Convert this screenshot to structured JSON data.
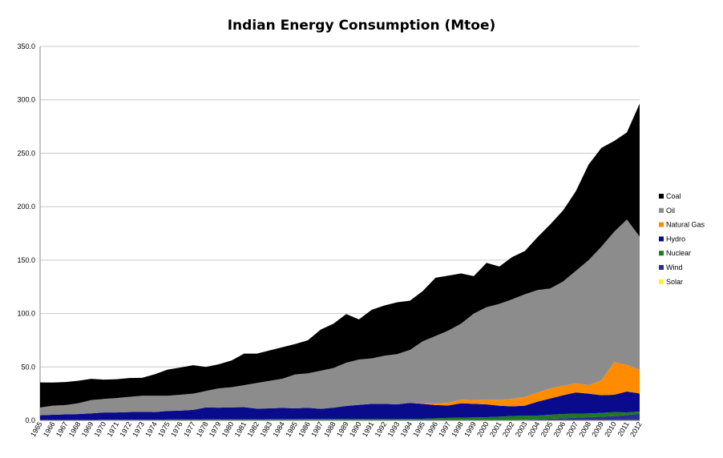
{
  "chart_data": {
    "type": "area",
    "stacked": true,
    "title": "Indian Energy Consumption (Mtoe)",
    "xlabel": "",
    "ylabel": "",
    "ylim": [
      0,
      350
    ],
    "yticks": [
      "350.0",
      "300.0",
      "250.0",
      "200.0",
      "150.0",
      "100.0",
      "50.0",
      "0.0"
    ],
    "grid": true,
    "legend_position": "right",
    "categories": [
      "1965",
      "1966",
      "1967",
      "1968",
      "1969",
      "1970",
      "1971",
      "1972",
      "1973",
      "1974",
      "1975",
      "1976",
      "1977",
      "1978",
      "1979",
      "1980",
      "1981",
      "1982",
      "1983",
      "1984",
      "1985",
      "1986",
      "1987",
      "1988",
      "1989",
      "1990",
      "1991",
      "1992",
      "1993",
      "1994",
      "1995",
      "1996",
      "1997",
      "1998",
      "1999",
      "2000",
      "2001",
      "2002",
      "2003",
      "2004",
      "2005",
      "2006",
      "2007",
      "2008",
      "2009",
      "2010",
      "2011",
      "2012"
    ],
    "series": [
      {
        "name": "Solar",
        "color": "#ffee33",
        "values": [
          0,
          0,
          0,
          0,
          0,
          0,
          0,
          0,
          0,
          0,
          0,
          0,
          0,
          0,
          0,
          0,
          0,
          0,
          0,
          0,
          0,
          0,
          0,
          0,
          0,
          0,
          0,
          0,
          0,
          0,
          0,
          0,
          0,
          0,
          0,
          0,
          0,
          0,
          0,
          0,
          0,
          0,
          0,
          0,
          0,
          0,
          0,
          0.2
        ]
      },
      {
        "name": "Wind",
        "color": "#2b2f8f",
        "values": [
          0,
          0,
          0,
          0,
          0,
          0,
          0,
          0,
          0,
          0,
          0,
          0,
          0,
          0,
          0,
          0,
          0,
          0,
          0,
          0,
          0,
          0,
          0,
          0,
          0,
          0,
          0,
          0,
          0,
          0,
          0,
          0,
          0,
          0,
          0,
          0,
          0,
          0.3,
          0.5,
          1,
          1.5,
          2,
          2.5,
          3,
          3.5,
          4,
          5,
          6
        ]
      },
      {
        "name": "Nuclear",
        "color": "#1f7a1f",
        "values": [
          0.1,
          0.2,
          0.3,
          0.3,
          0.3,
          0.6,
          0.6,
          0.6,
          0.6,
          0.6,
          0.8,
          0.8,
          0.8,
          0.9,
          0.9,
          0.9,
          0.9,
          1.0,
          1.2,
          1.2,
          1.2,
          1.3,
          1.3,
          1.4,
          1.5,
          1.5,
          1.5,
          1.5,
          1.5,
          1.4,
          1.5,
          2.0,
          2.3,
          2.5,
          2.8,
          3.0,
          3.5,
          3.8,
          3.8,
          3.5,
          3.7,
          4.0,
          3.8,
          3.5,
          3.5,
          3.7,
          2.5,
          2.0
        ]
      },
      {
        "name": "Hydro",
        "color": "#0a0a8c",
        "values": [
          4.7,
          5.0,
          5.3,
          5.6,
          6.3,
          6.8,
          6.8,
          7.2,
          7.5,
          7.2,
          8.0,
          8.3,
          9.0,
          11.2,
          11.0,
          11.3,
          11.5,
          10.0,
          10.0,
          10.5,
          10.0,
          10.5,
          9.5,
          10.5,
          12.0,
          13.0,
          14.0,
          14.0,
          13.5,
          15.0,
          14.0,
          12.3,
          11.7,
          13.5,
          12.7,
          12.0,
          10.2,
          9.0,
          9.5,
          13.0,
          15.3,
          17.5,
          19.8,
          18.5,
          16.5,
          16.3,
          19.5,
          17.0
        ]
      },
      {
        "name": "Natural Gas",
        "color": "#ff8c00",
        "values": [
          0,
          0,
          0,
          0,
          0,
          0,
          0,
          0,
          0,
          0,
          0,
          0,
          0,
          0,
          0,
          0,
          0,
          0,
          0,
          0,
          0,
          0,
          0,
          0,
          0,
          0,
          0,
          0,
          0,
          0,
          0.5,
          1.5,
          2.5,
          3.5,
          3.5,
          4.5,
          5.5,
          7.0,
          8.0,
          8.5,
          9.5,
          9.0,
          8.5,
          8.0,
          14.0,
          30.5,
          25.0,
          22.0
        ]
      },
      {
        "name": "Oil",
        "color": "#8c8c8c",
        "values": [
          7.2,
          8.6,
          8.7,
          10.1,
          12.4,
          12.6,
          13.5,
          14.2,
          14.9,
          15.2,
          14.2,
          14.9,
          15.2,
          15.4,
          18.1,
          18.8,
          20.6,
          24.0,
          25.8,
          27.3,
          31.8,
          32.2,
          35.7,
          37.1,
          40.5,
          42.5,
          42.5,
          45.0,
          47.0,
          49.6,
          58.0,
          63.2,
          67.5,
          71.0,
          81.0,
          86.5,
          89.8,
          93.2,
          96.2,
          96.0,
          93.5,
          97.5,
          105.4,
          117.0,
          125.0,
          122.0,
          136.0,
          124.8
        ]
      },
      {
        "name": "Coal",
        "color": "#000000",
        "values": [
          23.5,
          21.6,
          21.6,
          21.1,
          19.9,
          18.1,
          17.6,
          17.6,
          16.8,
          20.2,
          24.5,
          25.5,
          26.6,
          22.5,
          22.5,
          25.0,
          29.5,
          27.5,
          28.5,
          29.5,
          28.5,
          31.0,
          38.5,
          41.5,
          45.5,
          37.5,
          45.5,
          47.0,
          48.5,
          46.0,
          47.0,
          54.5,
          51.5,
          47.0,
          35.0,
          41.5,
          35.0,
          39.5,
          40.5,
          49.5,
          60.0,
          66.5,
          74.5,
          89.5,
          92.5,
          85.0,
          81.5,
          124.5
        ]
      }
    ]
  }
}
